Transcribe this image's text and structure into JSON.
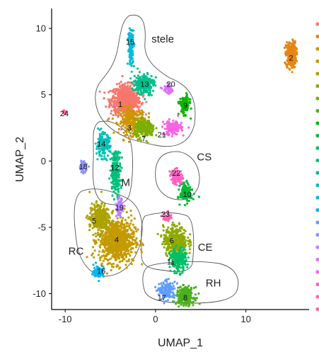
{
  "chart_data": {
    "type": "scatter",
    "xlabel": "UMAP_1",
    "ylabel": "UMAP_2",
    "xlim": [
      -11.5,
      17
    ],
    "ylim": [
      -11.2,
      11.5
    ],
    "xticks": [
      -10,
      0,
      10
    ],
    "yticks": [
      10,
      5,
      0,
      -5,
      -10
    ],
    "legend": "right (clipped)",
    "clusters": [
      {
        "id": "1",
        "cx": -3.3,
        "cy": 4.6,
        "sx": 1.5,
        "sy": 1.0,
        "n": 700,
        "color": "#F8766D"
      },
      {
        "id": "2",
        "cx": 15.0,
        "cy": 8.0,
        "sx": 0.5,
        "sy": 0.9,
        "n": 260,
        "color": "#E68613"
      },
      {
        "id": "3",
        "cx": -2.6,
        "cy": 3.0,
        "sx": 1.3,
        "sy": 0.9,
        "n": 260,
        "color": "#CD9600"
      },
      {
        "id": "4",
        "cx": -4.3,
        "cy": -6.0,
        "sx": 1.8,
        "sy": 1.5,
        "n": 800,
        "color": "#C49A00"
      },
      {
        "id": "5",
        "cx": -6.2,
        "cy": -4.3,
        "sx": 1.0,
        "sy": 1.0,
        "n": 300,
        "color": "#ABA300"
      },
      {
        "id": "6",
        "cx": 2.2,
        "cy": -6.0,
        "sx": 1.2,
        "sy": 1.0,
        "n": 350,
        "color": "#8EA900"
      },
      {
        "id": "7",
        "cx": -1.2,
        "cy": 2.4,
        "sx": 1.0,
        "sy": 0.6,
        "n": 200,
        "color": "#7CAE00"
      },
      {
        "id": "8",
        "cx": 3.3,
        "cy": -10.2,
        "sx": 0.9,
        "sy": 0.6,
        "n": 250,
        "color": "#4CB01F"
      },
      {
        "id": "9",
        "cx": 3.2,
        "cy": 4.2,
        "sx": 0.5,
        "sy": 0.6,
        "n": 150,
        "color": "#0CB702"
      },
      {
        "id": "10",
        "cx": 3.4,
        "cy": -2.4,
        "sx": 0.6,
        "sy": 0.6,
        "n": 150,
        "color": "#00BA38"
      },
      {
        "id": "11",
        "cx": 2.5,
        "cy": -7.5,
        "sx": 0.8,
        "sy": 0.8,
        "n": 200,
        "color": "#00BE67"
      },
      {
        "id": "12",
        "cx": -4.4,
        "cy": -0.8,
        "sx": 0.5,
        "sy": 1.4,
        "n": 220,
        "color": "#00BF7D"
      },
      {
        "id": "13",
        "cx": -1.3,
        "cy": 5.8,
        "sx": 1.0,
        "sy": 0.7,
        "n": 250,
        "color": "#00C08D"
      },
      {
        "id": "14",
        "cx": -5.8,
        "cy": 1.2,
        "sx": 0.7,
        "sy": 0.8,
        "n": 160,
        "color": "#00C0B8"
      },
      {
        "id": "15",
        "cx": -2.7,
        "cy": 8.6,
        "sx": 0.3,
        "sy": 1.3,
        "n": 120,
        "color": "#00BCD8"
      },
      {
        "id": "16",
        "cx": -6.3,
        "cy": -8.3,
        "sx": 0.5,
        "sy": 0.4,
        "n": 80,
        "color": "#00B4F0"
      },
      {
        "id": "17",
        "cx": 1.3,
        "cy": -9.8,
        "sx": 0.8,
        "sy": 0.6,
        "n": 160,
        "color": "#619CFF"
      },
      {
        "id": "18",
        "cx": -8.0,
        "cy": -0.4,
        "sx": 0.4,
        "sy": 0.4,
        "n": 60,
        "color": "#8B93FF"
      },
      {
        "id": "19",
        "cx": -4.0,
        "cy": -3.5,
        "sx": 0.3,
        "sy": 0.6,
        "n": 80,
        "color": "#B983FF"
      },
      {
        "id": "20",
        "cx": 1.4,
        "cy": 5.4,
        "sx": 0.5,
        "sy": 0.3,
        "n": 60,
        "color": "#DB72FB"
      },
      {
        "id": "21",
        "cx": 1.9,
        "cy": 2.5,
        "sx": 0.9,
        "sy": 0.5,
        "n": 150,
        "color": "#F564E3"
      },
      {
        "id": "22",
        "cx": 2.3,
        "cy": -1.2,
        "sx": 0.6,
        "sy": 0.5,
        "n": 100,
        "color": "#FF61C3"
      },
      {
        "id": "23",
        "cx": 1.3,
        "cy": -4.2,
        "sx": 0.4,
        "sy": 0.3,
        "n": 50,
        "color": "#FF64B0"
      },
      {
        "id": "24",
        "cx": -10.1,
        "cy": 3.7,
        "sx": 0.2,
        "sy": 0.15,
        "n": 25,
        "color": "#FF6A98"
      }
    ],
    "cluster_labels": [
      {
        "text": "15",
        "x": -2.8,
        "y": 9.0
      },
      {
        "text": "2",
        "x": 15.0,
        "y": 7.8
      },
      {
        "text": "13",
        "x": -1.2,
        "y": 5.8
      },
      {
        "text": "20",
        "x": 1.7,
        "y": 5.8
      },
      {
        "text": "1",
        "x": -3.9,
        "y": 4.3
      },
      {
        "text": "9",
        "x": 3.3,
        "y": 4.2
      },
      {
        "text": "24",
        "x": -10.1,
        "y": 3.6
      },
      {
        "text": "3",
        "x": -2.9,
        "y": 2.5
      },
      {
        "text": "21",
        "x": 0.7,
        "y": 2.0
      },
      {
        "text": "7",
        "x": -1.3,
        "y": 1.7
      },
      {
        "text": "14",
        "x": -6.0,
        "y": 1.3
      },
      {
        "text": "18",
        "x": -8.0,
        "y": -0.4
      },
      {
        "text": "12",
        "x": -4.5,
        "y": -0.5
      },
      {
        "text": "22",
        "x": 2.3,
        "y": -0.9
      },
      {
        "text": "10",
        "x": 3.5,
        "y": -2.5
      },
      {
        "text": "19",
        "x": -4.0,
        "y": -3.5
      },
      {
        "text": "23",
        "x": 1.1,
        "y": -4.0
      },
      {
        "text": "5",
        "x": -6.8,
        "y": -4.5
      },
      {
        "text": "4",
        "x": -4.3,
        "y": -5.9
      },
      {
        "text": "6",
        "x": 1.8,
        "y": -6.0
      },
      {
        "text": "11",
        "x": 1.7,
        "y": -7.6
      },
      {
        "text": "16",
        "x": -6.0,
        "y": -8.3
      },
      {
        "text": "17",
        "x": 0.7,
        "y": -10.3
      },
      {
        "text": "8",
        "x": 3.3,
        "y": -10.3
      }
    ],
    "region_labels": [
      {
        "text": "stele",
        "x": 0.8,
        "y": 9.2
      },
      {
        "text": "CS",
        "x": 5.4,
        "y": 0.3
      },
      {
        "text": "M",
        "x": -3.3,
        "y": -1.6
      },
      {
        "text": "RC",
        "x": -8.8,
        "y": -6.8
      },
      {
        "text": "CE",
        "x": 5.5,
        "y": -6.5
      },
      {
        "text": "RH",
        "x": 6.4,
        "y": -9.2
      }
    ],
    "legend_colors": [
      "#F8766D",
      "#E68613",
      "#CD9600",
      "#C49A00",
      "#ABA300",
      "#8EA900",
      "#7CAE00",
      "#4CB01F",
      "#0CB702",
      "#00BA38",
      "#00BE67",
      "#00BF7D",
      "#00C08D",
      "#00C0B8",
      "#00BCD8",
      "#00B4F0",
      "#619CFF",
      "#8B93FF",
      "#B983FF",
      "#DB72FB",
      "#F564E3",
      "#FF61C3",
      "#FF64B0",
      "#FF6A98"
    ]
  }
}
